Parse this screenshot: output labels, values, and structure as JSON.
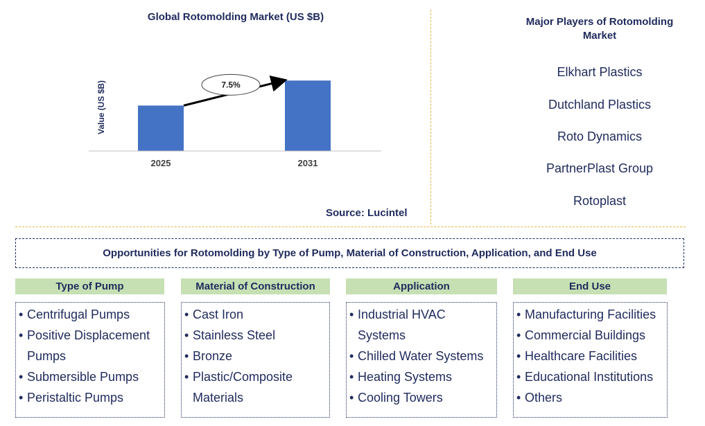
{
  "chart_data": {
    "type": "bar",
    "title": "Global Rotomolding Market (US $B)",
    "ylabel": "Value (US $B)",
    "xlabel": "",
    "categories": [
      "2025",
      "2031"
    ],
    "values": [
      1.0,
      1.55
    ],
    "ylim": [
      0,
      1.6
    ],
    "annotation": {
      "label": "7.5%",
      "from": "2025",
      "to": "2031"
    },
    "bar_color": "#4472c4",
    "source": "Source: Lucintel"
  },
  "players": {
    "title": "Major Players of Rotomolding Market",
    "items": [
      "Elkhart Plastics",
      "Dutchland Plastics",
      "Roto Dynamics",
      "PartnerPlast Group",
      "Rotoplast"
    ]
  },
  "opportunities": {
    "title": "Opportunities for Rotomolding by Type of Pump, Material of Construction, Application, and End Use",
    "categories": [
      {
        "header": "Type of Pump",
        "items": [
          "Centrifugal Pumps",
          "Positive Displacement Pumps",
          "Submersible Pumps",
          "Peristaltic Pumps"
        ]
      },
      {
        "header": "Material of Construction",
        "items": [
          "Cast Iron",
          "Stainless Steel",
          "Bronze",
          "Plastic/Composite Materials"
        ]
      },
      {
        "header": "Application",
        "items": [
          "Industrial HVAC Systems",
          "Chilled Water Systems",
          "Heating Systems",
          "Cooling Towers"
        ]
      },
      {
        "header": "End Use",
        "items": [
          "Manufacturing Facilities",
          "Commercial Buildings",
          "Healthcare Facilities",
          "Educational Institutions",
          "Others"
        ]
      }
    ]
  },
  "colors": {
    "navy": "#1f2a5c",
    "bar": "#4472c4",
    "header_bg": "#c6e0b4",
    "divider": "#e2b53c"
  }
}
